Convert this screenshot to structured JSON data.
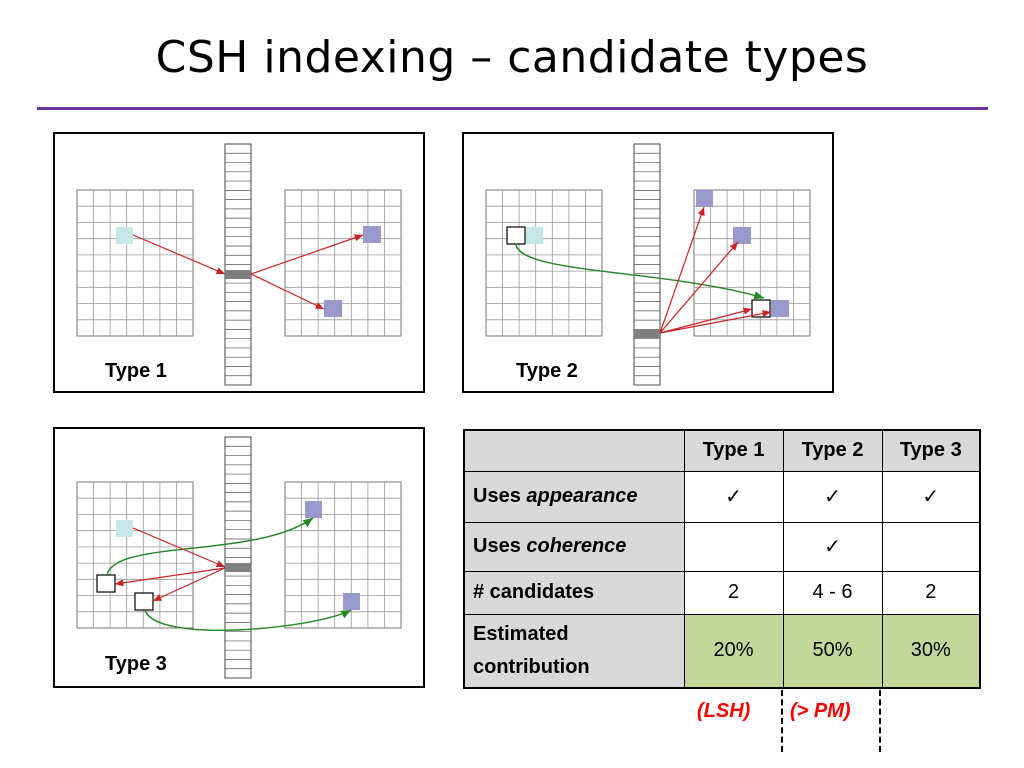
{
  "title": "CSH indexing – candidate types",
  "panels": [
    {
      "label": "Type 1"
    },
    {
      "label": "Type 2"
    },
    {
      "label": "Type 3"
    }
  ],
  "table": {
    "columns": [
      "Type 1",
      "Type 2",
      "Type 3"
    ],
    "rows": [
      {
        "label_prefix": "Uses ",
        "label_italic": "appearance",
        "cells": [
          "✓",
          "✓",
          "✓"
        ]
      },
      {
        "label_prefix": "Uses ",
        "label_italic": "coherence",
        "cells": [
          "",
          "✓",
          ""
        ]
      },
      {
        "label_prefix": "# candidates",
        "label_italic": "",
        "cells": [
          "2",
          "4 - 6",
          "2"
        ]
      },
      {
        "label_prefix": "Estimated contribution",
        "label_italic": "",
        "cells": [
          "20%",
          "50%",
          "30%"
        ]
      }
    ]
  },
  "annotations": {
    "lsh": "(LSH)",
    "pm": "(> PM)"
  },
  "colors": {
    "title_rule": "#7030a0",
    "source_patch": "#c6e7e7",
    "target_patch": "#9999cc",
    "hash_bin": "#808080",
    "appearance_arrow": "#cc2222",
    "coherence_arrow": "#228822",
    "header_fill": "#d9d9d9",
    "contribution_fill": "#c4d79b",
    "annotation_text": "#ff0000"
  }
}
